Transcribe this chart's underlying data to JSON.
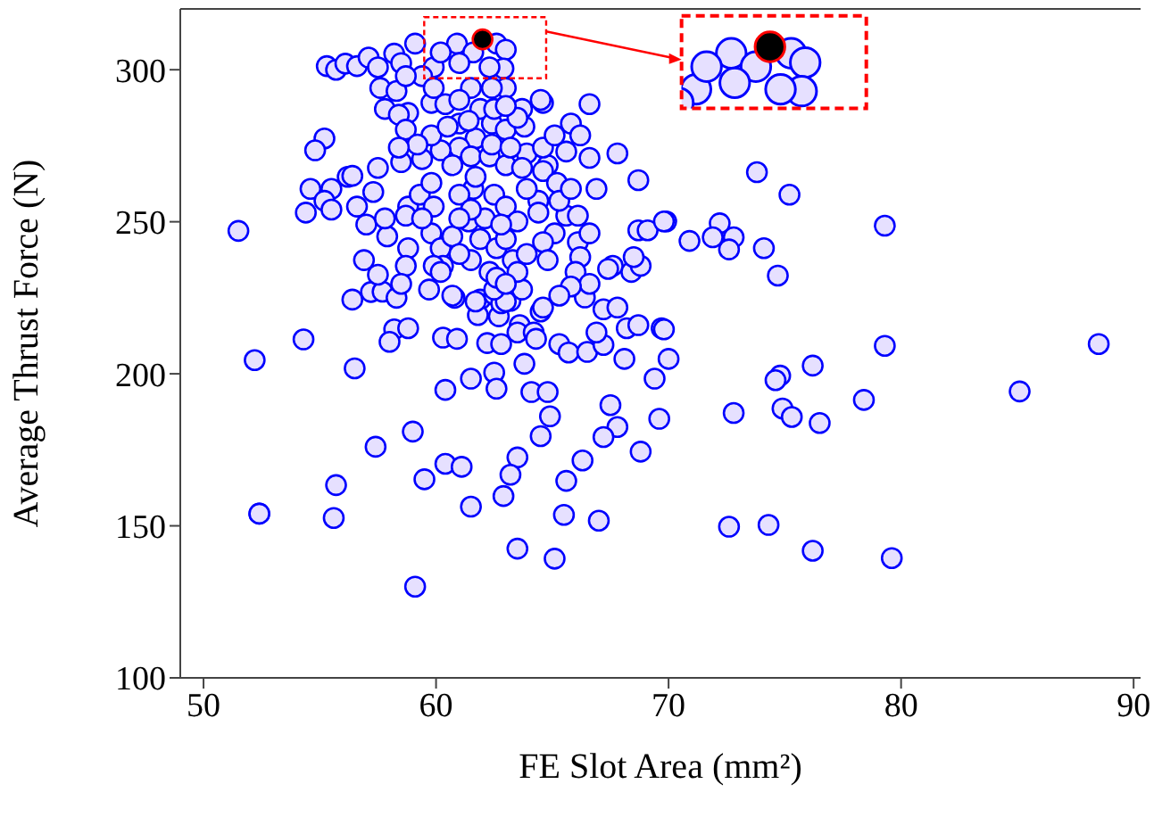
{
  "chart_data": {
    "type": "scatter",
    "xlabel": "FE Slot Area (mm²)",
    "ylabel": "Average Thrust Force (N)",
    "xlim": [
      49,
      90.3
    ],
    "xticks": [
      50,
      60,
      70,
      80,
      90
    ],
    "ylim": [
      100,
      320
    ],
    "yticks": [
      100,
      150,
      200,
      250,
      300
    ],
    "grid": false,
    "legend": false,
    "marker": "circle",
    "series": [
      {
        "color": "#0000ff",
        "x": [
          51.5,
          52.2,
          52.4,
          54.3,
          56.5,
          56.4,
          57.2,
          57.7,
          58.3,
          60.8,
          61.9,
          62.5,
          63.2,
          61.8,
          62.7,
          62.8,
          58.2,
          58.8,
          58.0,
          60.3,
          60.9,
          62.2,
          62.8,
          63.6,
          63.5,
          64.2,
          64.3,
          64.5,
          63.8,
          61.5,
          60.4,
          62.5,
          62.6,
          64.1,
          64.8,
          65.3,
          65.7,
          66.5,
          67.2,
          66.9,
          66.4,
          67.2,
          68.2,
          68.7,
          69.7,
          68.1,
          69.4,
          70.0,
          67.5,
          67.8,
          67.2,
          69.6,
          68.8,
          64.9,
          64.5,
          66.3,
          63.5,
          63.2,
          62.9,
          65.6,
          65.5,
          67.0,
          63.5,
          65.1,
          59.1,
          61.5,
          59.5,
          60.4,
          61.1,
          59.0,
          57.4,
          55.7,
          52.4,
          55.6,
          69.8,
          79.3,
          88.5,
          85.1,
          76.2,
          74.8,
          74.6,
          72.8,
          74.9,
          75.3,
          76.5,
          78.4,
          72.6,
          74.3,
          76.2,
          79.6,
          73.8,
          75.2,
          69.9,
          72.2,
          70.9,
          71.9,
          72.8,
          72.6,
          74.1,
          74.7,
          79.3,
          55.3,
          55.7,
          56.1,
          56.6,
          57.1,
          57.5,
          58.2,
          59.1,
          58.5,
          59.9,
          60.9,
          61.6,
          62.6,
          63.0,
          62.9,
          62.3,
          60.2,
          59.4,
          61.0,
          57.6,
          58.3,
          58.7,
          61.5,
          63.0,
          57.8,
          58.8,
          58.4,
          59.8,
          60.4,
          61.0,
          61.9,
          62.4,
          63.7,
          64.6,
          66.6,
          65.8,
          66.2,
          67.8,
          68.7,
          68.7,
          69.1,
          69.8,
          66.6,
          65.6,
          64.8,
          63.9,
          63.0,
          61.7,
          61.0,
          60.2,
          59.4,
          58.5,
          57.5,
          56.2,
          55.2,
          54.8,
          54.6,
          54.4,
          55.5,
          55.2,
          55.5,
          56.4,
          57.3,
          56.6,
          57.0,
          57.9,
          57.8,
          58.8,
          58.7,
          59.3,
          59.9,
          59.8,
          60.2,
          60.3,
          60.7,
          61.4,
          62.1,
          61.9,
          62.6,
          63.0,
          63.3,
          63.9,
          64.4,
          64.6,
          65.2,
          65.6,
          65.3,
          64.4,
          63.9,
          62.5,
          61.6,
          61.0,
          59.8,
          60.7,
          61.5,
          62.3,
          63.0,
          63.7,
          63.8,
          62.5,
          61.0,
          62.4,
          63.2,
          63.5,
          64.5,
          66.1,
          65.1,
          66.1,
          66.2,
          66.0,
          66.6,
          67.6,
          68.4,
          68.8,
          68.5,
          67.4,
          67.8,
          65.8,
          65.3,
          64.6,
          63.7,
          63.0,
          62.5,
          61.7,
          60.7,
          59.9,
          59.7,
          60.2,
          58.8,
          58.7,
          58.5,
          57.5,
          56.9,
          63.0,
          63.5,
          62.3,
          61.5,
          62.6,
          63.5,
          63.0,
          61.0,
          61.5,
          59.4,
          61.0,
          62.8,
          64.6,
          65.1,
          65.8,
          66.9,
          66.6,
          64.6,
          64.8,
          61.7,
          58.7,
          59.8,
          60.5,
          59.2,
          58.4,
          61.4,
          62.4,
          59.9,
          63.0
        ],
        "values": [
          247,
          204.5,
          154,
          211.3,
          201.8,
          224.4,
          226.9,
          227,
          225,
          225,
          224.4,
          226,
          224,
          219.3,
          218.9,
          223.2,
          214.6,
          215,
          210.5,
          211.9,
          211.5,
          210.1,
          209.8,
          216,
          213.6,
          213.6,
          211.5,
          220.5,
          203.3,
          198.4,
          194.7,
          200.4,
          195.1,
          194,
          194,
          209.8,
          207,
          207.2,
          209.5,
          213.6,
          225.1,
          221.2,
          215,
          216,
          215,
          204.9,
          198.4,
          204.9,
          189.7,
          182.5,
          179.2,
          185.2,
          174.4,
          186,
          179.5,
          171.5,
          172.5,
          166.8,
          159.8,
          164.8,
          153.6,
          151.7,
          142.5,
          139.2,
          130,
          156.3,
          165.3,
          170.4,
          169.4,
          181,
          176,
          163.4,
          154,
          152.6,
          214.6,
          209.2,
          209.8,
          194.2,
          202.7,
          199.4,
          197.9,
          187.1,
          188.6,
          185.8,
          183.8,
          191.4,
          149.7,
          150.3,
          141.8,
          139.4,
          266.3,
          258.9,
          250.1,
          249.5,
          243.7,
          244.9,
          244.9,
          240.9,
          241.3,
          232.3,
          248.7,
          301.2,
          300,
          302,
          301.2,
          304,
          300.8,
          305.3,
          308.6,
          302.2,
          300.8,
          308.6,
          305.7,
          308.6,
          306.6,
          300.4,
          300.8,
          305.7,
          297.9,
          302.2,
          294,
          293,
          297.9,
          294,
          294,
          287.1,
          285.8,
          285.2,
          289.1,
          288.7,
          282.3,
          287.1,
          282.3,
          287.1,
          289.1,
          288.7,
          282.3,
          278.4,
          272.5,
          263.7,
          247.2,
          247.2,
          250.1,
          271,
          273.1,
          268.6,
          272.5,
          280.3,
          277.4,
          274.4,
          273.5,
          270.6,
          269.6,
          267.7,
          264.8,
          277.4,
          273.5,
          260.8,
          253,
          260.8,
          256.9,
          254,
          265.1,
          259.8,
          255,
          249.1,
          245.2,
          251.1,
          255,
          252,
          258.9,
          255,
          246.2,
          241.3,
          235.5,
          245.2,
          250.1,
          251.1,
          244.3,
          241.3,
          244.3,
          237.4,
          239.4,
          256.9,
          266.7,
          262.8,
          252,
          256.9,
          253,
          260.8,
          258.9,
          260.8,
          258.9,
          262.8,
          268.6,
          271.5,
          271.5,
          268.6,
          267.7,
          281.3,
          287.1,
          290.1,
          275.4,
          274.4,
          284.2,
          290.1,
          252,
          246.2,
          243.3,
          238.4,
          233.5,
          229.6,
          235.5,
          233.5,
          235.5,
          238.4,
          234.5,
          221.8,
          228.7,
          225.7,
          221.8,
          227.7,
          223.8,
          227.7,
          223.8,
          225.7,
          235.5,
          227.7,
          233.5,
          241.3,
          235.5,
          229.6,
          232.6,
          237.4,
          255,
          250.1,
          233.5,
          237.4,
          231.6,
          233.5,
          229.6,
          239.4,
          254,
          251.1,
          251.1,
          249.1,
          274.4,
          278.4,
          260.8,
          260.8,
          246.2,
          243.3,
          237.4,
          264.8,
          280.3,
          278.4,
          281.3,
          275.4,
          274.4,
          283.2,
          294,
          294,
          288.1
        ]
      },
      {
        "color": "#ff0000",
        "x": [
          62.0
        ],
        "values": [
          310
        ]
      }
    ]
  }
}
